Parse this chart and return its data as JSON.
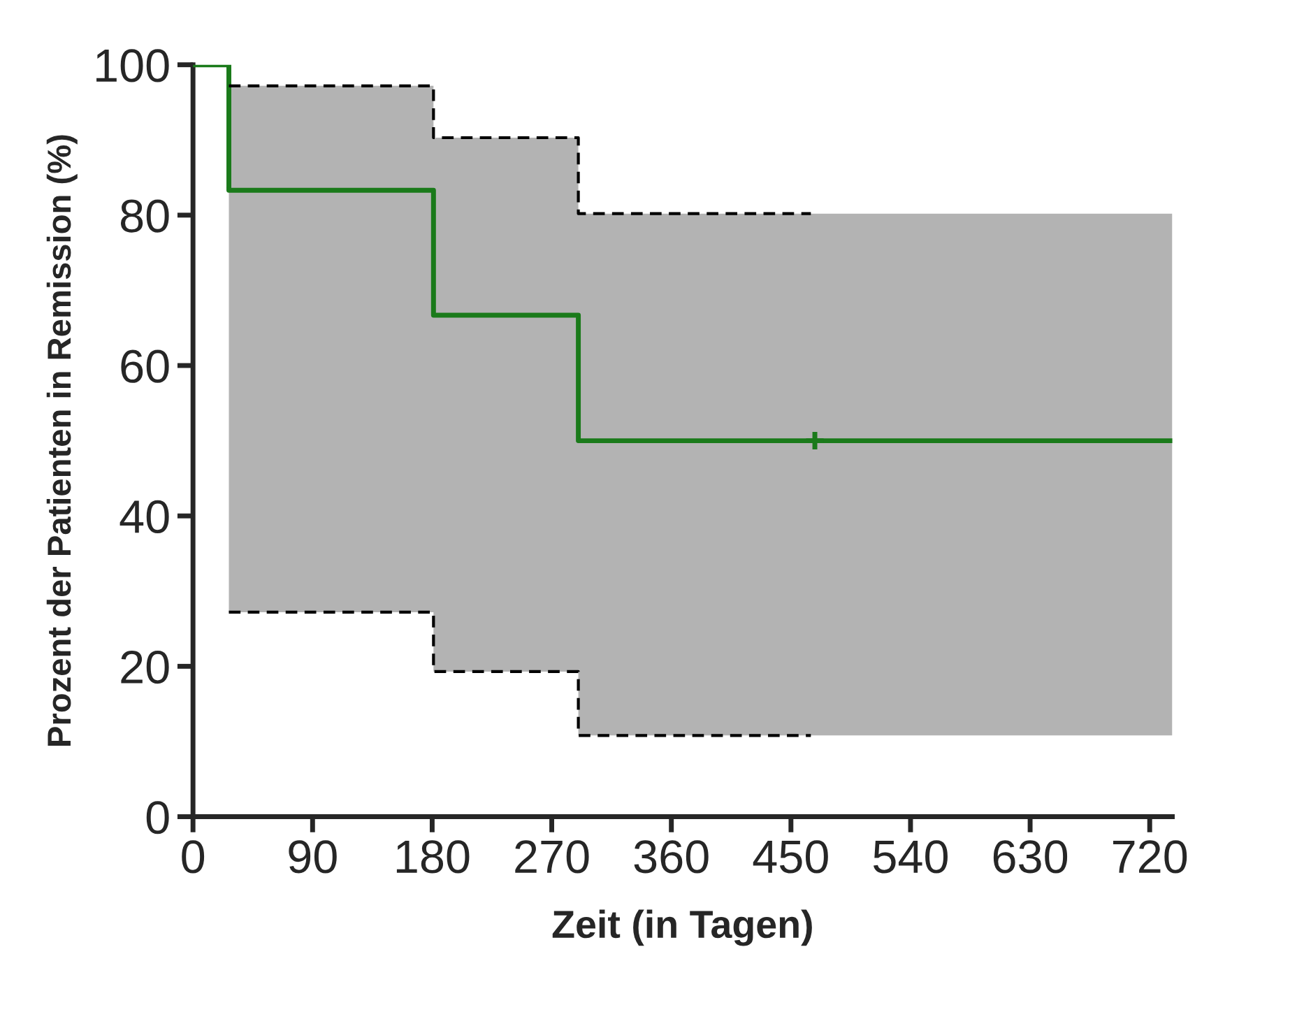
{
  "chart_data": {
    "type": "step",
    "xlabel": "Zeit (in Tagen)",
    "ylabel": "Prozent der Patienten in Remission (%)",
    "xlim": [
      0,
      737
    ],
    "ylim": [
      0,
      100
    ],
    "xticks": [
      0,
      90,
      180,
      270,
      360,
      450,
      540,
      630,
      720
    ],
    "yticks": [
      0,
      20,
      40,
      60,
      80,
      100
    ],
    "grid": false,
    "legend": false,
    "series": [
      {
        "color": "#1a7a1a",
        "line_style": "solid",
        "x": [
          0,
          27,
          181,
          290,
          737
        ],
        "values": [
          100,
          83.3,
          66.7,
          50,
          50
        ],
        "lower": [
          null,
          27.2,
          19.3,
          10.8,
          10.8
        ],
        "upper": [
          null,
          97.2,
          90.3,
          80.2,
          80.2
        ]
      },
      {
        "color": "#000000",
        "line_style": "dashed",
        "x": [
          27,
          181,
          290,
          465
        ],
        "values": [
          97.2,
          90.3,
          80.2,
          80.2
        ]
      },
      {
        "color": "#000000",
        "line_style": "dashed",
        "x": [
          27,
          181,
          290,
          465
        ],
        "values": [
          27.2,
          19.3,
          10.8,
          10.8
        ]
      },
      {
        "type": "scatter",
        "color": "#1a7a1a",
        "marker": "cross",
        "x": [
          468
        ],
        "values": [
          50
        ]
      }
    ]
  }
}
